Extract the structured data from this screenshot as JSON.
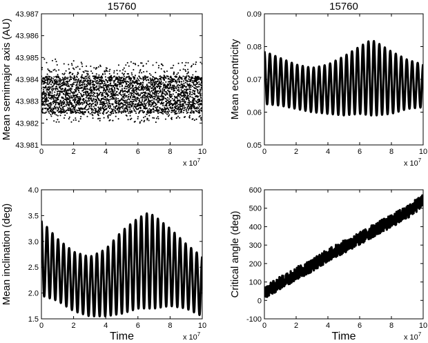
{
  "figure": {
    "panels": [
      {
        "title": "15760",
        "ylabel": "Mean semimajor axis (AU)",
        "xlabel": "",
        "x_exponent_label": "x 10",
        "x_exponent": "7"
      },
      {
        "title": "15760",
        "ylabel": "Mean eccentricity",
        "xlabel": "",
        "x_exponent_label": "x 10",
        "x_exponent": "7"
      },
      {
        "title": "",
        "ylabel": "Mean inclination (deg)",
        "xlabel": "Time",
        "x_exponent_label": "x 10",
        "x_exponent": "7"
      },
      {
        "title": "",
        "ylabel": "Critical angle (deg)",
        "xlabel": "Time",
        "x_exponent_label": "x 10",
        "x_exponent": "7"
      }
    ]
  },
  "chart_data": [
    {
      "type": "scatter",
      "title": "15760",
      "xlabel": "",
      "ylabel": "Mean semimajor axis (AU)",
      "xlim": [
        0,
        10
      ],
      "ylim": [
        43.981,
        43.987
      ],
      "x_ticks": [
        0,
        2,
        4,
        6,
        8,
        10
      ],
      "y_ticks": [
        43.981,
        43.982,
        43.983,
        43.984,
        43.985,
        43.986,
        43.987
      ],
      "x_multiplier": "x 10^7",
      "series": [
        {
          "x": [
            0.0,
            0.5,
            1.0,
            1.5,
            2.0,
            2.5,
            3.0,
            3.5,
            4.0,
            4.5,
            5.0,
            5.5,
            6.0,
            6.5,
            7.0,
            7.5,
            8.0,
            8.5,
            9.0,
            9.5,
            10.0
          ],
          "y": [
            43.9833,
            43.9833,
            43.9833,
            43.9833,
            43.9833,
            43.9833,
            43.9833,
            43.9833,
            43.9833,
            43.9833,
            43.9833,
            43.9833,
            43.9833,
            43.9833,
            43.9833,
            43.9833,
            43.9833,
            43.9833,
            43.9833,
            43.9833,
            43.9833
          ],
          "band_low": [
            43.982,
            43.9821,
            43.982,
            43.9821,
            43.982,
            43.9821,
            43.9822,
            43.9821,
            43.9821,
            43.9821,
            43.982,
            43.982,
            43.9819,
            43.982,
            43.982,
            43.9821,
            43.9821,
            43.9821,
            43.9821,
            43.9821,
            43.9821
          ],
          "band_high": [
            43.9849,
            43.985,
            43.9849,
            43.9848,
            43.9849,
            43.9848,
            43.9847,
            43.9847,
            43.9846,
            43.9846,
            43.9847,
            43.9848,
            43.9849,
            43.9849,
            43.9848,
            43.9848,
            43.9848,
            43.9848,
            43.9848,
            43.9848,
            43.9848
          ]
        }
      ]
    },
    {
      "type": "line",
      "title": "15760",
      "xlabel": "",
      "ylabel": "Mean eccentricity",
      "xlim": [
        0,
        10
      ],
      "ylim": [
        0.05,
        0.09
      ],
      "x_ticks": [
        0,
        2,
        4,
        6,
        8,
        10
      ],
      "y_ticks": [
        0.05,
        0.06,
        0.07,
        0.08,
        0.09
      ],
      "x_multiplier": "x 10^7",
      "series": [
        {
          "oscillation_cycles": 29,
          "x": [
            0.0,
            1.0,
            2.0,
            3.0,
            4.0,
            5.0,
            6.0,
            6.7,
            7.0,
            8.0,
            9.0,
            10.0
          ],
          "upper": [
            0.0785,
            0.0765,
            0.0745,
            0.0735,
            0.0745,
            0.077,
            0.08,
            0.082,
            0.0815,
            0.0785,
            0.076,
            0.0745
          ],
          "lower": [
            0.0625,
            0.062,
            0.061,
            0.06,
            0.0595,
            0.059,
            0.0595,
            0.059,
            0.059,
            0.0595,
            0.061,
            0.0615
          ]
        }
      ]
    },
    {
      "type": "line",
      "title": "",
      "xlabel": "Time",
      "ylabel": "Mean inclination (deg)",
      "xlim": [
        0,
        10
      ],
      "ylim": [
        1.5,
        4
      ],
      "x_ticks": [
        0,
        2,
        4,
        6,
        8,
        10
      ],
      "y_ticks": [
        1.5,
        2,
        2.5,
        3,
        3.5,
        4
      ],
      "x_multiplier": "x 10^7",
      "series": [
        {
          "oscillation_cycles": 29,
          "x": [
            0.0,
            1.0,
            2.0,
            3.0,
            4.0,
            5.0,
            6.0,
            6.6,
            7.0,
            8.0,
            9.0,
            10.0
          ],
          "upper": [
            3.4,
            3.05,
            2.8,
            2.7,
            2.85,
            3.2,
            3.45,
            3.55,
            3.5,
            3.25,
            2.95,
            2.7
          ],
          "lower": [
            1.95,
            1.85,
            1.65,
            1.55,
            1.55,
            1.6,
            1.7,
            1.7,
            1.7,
            1.75,
            1.7,
            1.55
          ]
        }
      ]
    },
    {
      "type": "line",
      "title": "",
      "xlabel": "Time",
      "ylabel": "Critical angle (deg)",
      "xlim": [
        0,
        10
      ],
      "ylim": [
        -100,
        600
      ],
      "x_ticks": [
        0,
        2,
        4,
        6,
        8,
        10
      ],
      "y_ticks": [
        -100,
        0,
        100,
        200,
        300,
        400,
        500,
        600
      ],
      "x_multiplier": "x 10^7",
      "series": [
        {
          "x": [
            0.0,
            1.0,
            2.0,
            3.0,
            4.0,
            5.0,
            6.0,
            7.0,
            8.0,
            9.0,
            10.0
          ],
          "y": [
            40,
            95,
            145,
            190,
            245,
            290,
            335,
            385,
            430,
            480,
            540
          ],
          "spread": 35
        }
      ]
    }
  ]
}
